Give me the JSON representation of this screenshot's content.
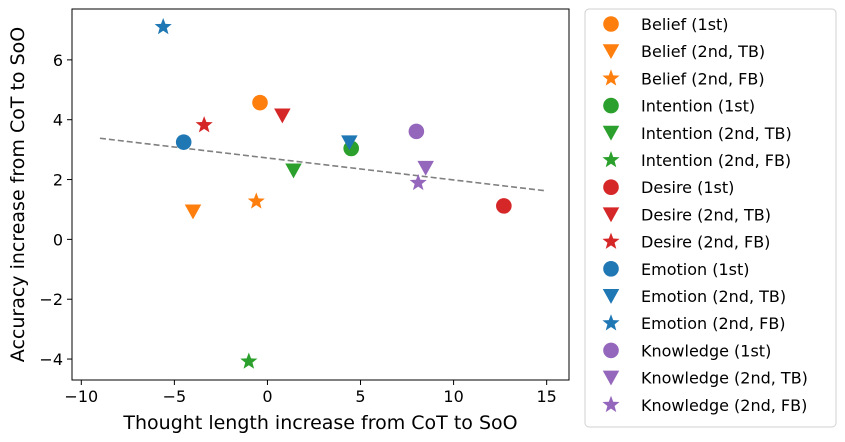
{
  "chart_data": {
    "type": "scatter",
    "title": "",
    "xlabel": "Thought length increase from CoT to SoO",
    "ylabel": "Accuracy increase from CoT to SoO",
    "xlim": [
      -10.5,
      16.2
    ],
    "ylim": [
      -4.7,
      7.7
    ],
    "xticks": [
      -10,
      -5,
      0,
      5,
      10,
      15
    ],
    "yticks": [
      -4,
      -2,
      0,
      2,
      4,
      6
    ],
    "xtick_labels": [
      "−10",
      "−5",
      "0",
      "5",
      "10",
      "15"
    ],
    "ytick_labels": [
      "−4",
      "−2",
      "0",
      "2",
      "4",
      "6"
    ],
    "grid": false,
    "legend_position": "outside-right",
    "trend_line": {
      "style": "dashed",
      "color": "#808080",
      "x": [
        -9,
        15
      ],
      "y": [
        3.38,
        1.62
      ]
    },
    "series": [
      {
        "name": "Belief (1st)",
        "marker": "circle",
        "color": "#ff7f0e",
        "x": -0.4,
        "y": 4.57
      },
      {
        "name": "Belief (2nd, TB)",
        "marker": "triangle-down",
        "color": "#ff7f0e",
        "x": -4.0,
        "y": 0.93
      },
      {
        "name": "Belief (2nd, FB)",
        "marker": "star",
        "color": "#ff7f0e",
        "x": -0.6,
        "y": 1.27
      },
      {
        "name": "Intention (1st)",
        "marker": "circle",
        "color": "#2ca02c",
        "x": 4.5,
        "y": 3.04
      },
      {
        "name": "Intention (2nd, TB)",
        "marker": "triangle-down",
        "color": "#2ca02c",
        "x": 1.4,
        "y": 2.3
      },
      {
        "name": "Intention (2nd, FB)",
        "marker": "star",
        "color": "#2ca02c",
        "x": -1.0,
        "y": -4.08
      },
      {
        "name": "Desire (1st)",
        "marker": "circle",
        "color": "#d62728",
        "x": 12.7,
        "y": 1.12
      },
      {
        "name": "Desire (2nd, TB)",
        "marker": "triangle-down",
        "color": "#d62728",
        "x": 0.8,
        "y": 4.14
      },
      {
        "name": "Desire (2nd, FB)",
        "marker": "star",
        "color": "#d62728",
        "x": -3.4,
        "y": 3.82
      },
      {
        "name": "Emotion (1st)",
        "marker": "circle",
        "color": "#1f77b4",
        "x": -4.5,
        "y": 3.25
      },
      {
        "name": "Emotion (2nd, TB)",
        "marker": "triangle-down",
        "color": "#1f77b4",
        "x": 4.4,
        "y": 3.24
      },
      {
        "name": "Emotion (2nd, FB)",
        "marker": "star",
        "color": "#1f77b4",
        "x": -5.6,
        "y": 7.1
      },
      {
        "name": "Knowledge (1st)",
        "marker": "circle",
        "color": "#9467bd",
        "x": 8.0,
        "y": 3.61
      },
      {
        "name": "Knowledge (2nd, TB)",
        "marker": "triangle-down",
        "color": "#9467bd",
        "x": 8.5,
        "y": 2.39
      },
      {
        "name": "Knowledge (2nd, FB)",
        "marker": "star",
        "color": "#9467bd",
        "x": 8.1,
        "y": 1.89
      }
    ]
  }
}
